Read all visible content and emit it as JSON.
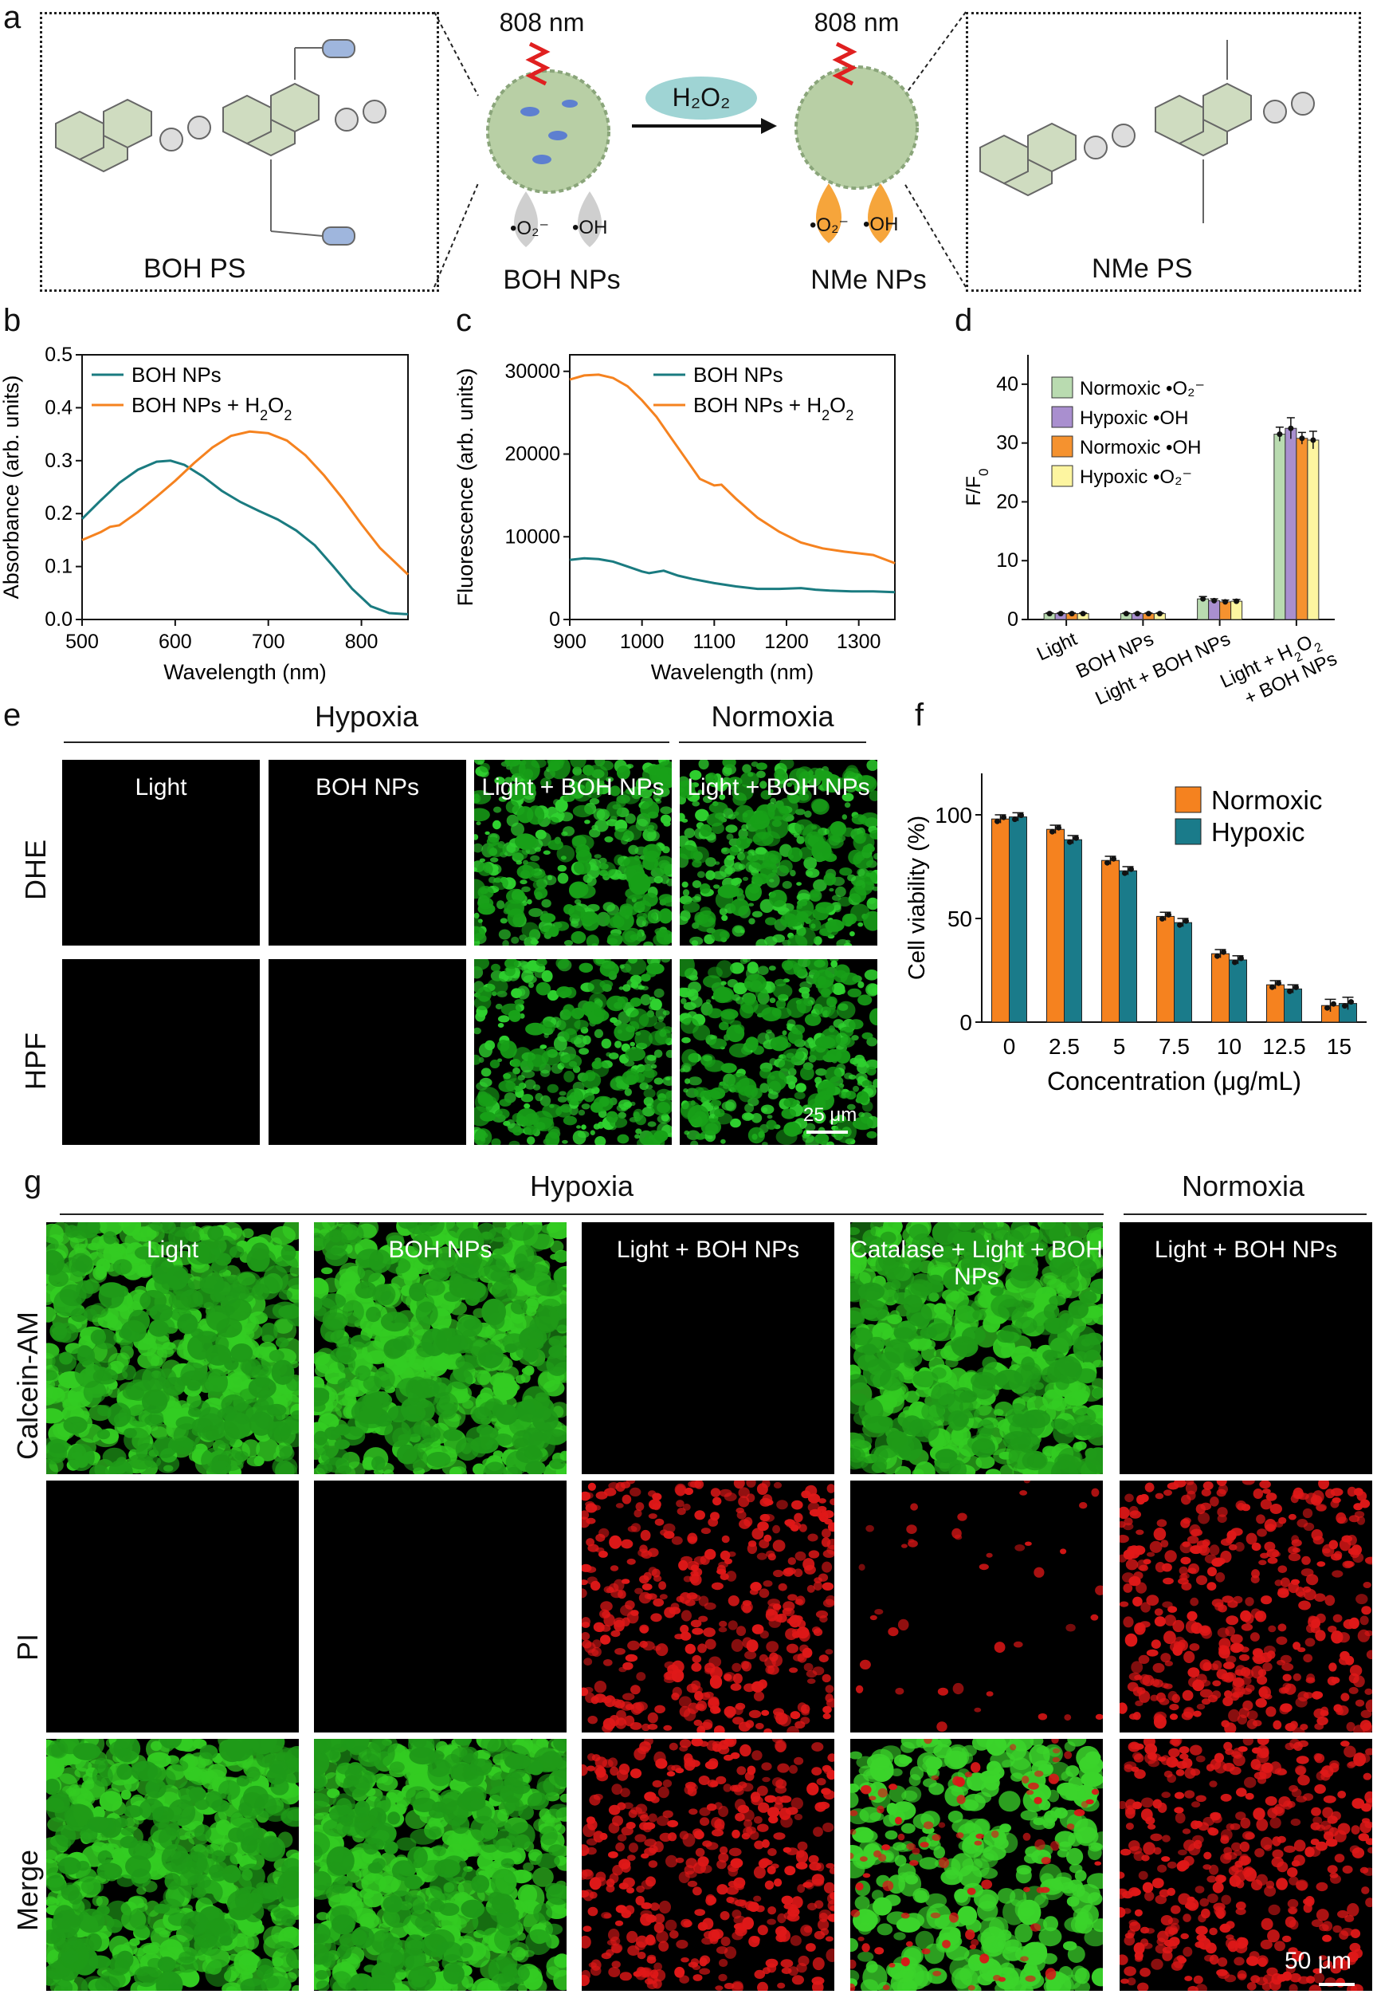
{
  "panel_labels": {
    "a": "a",
    "b": "b",
    "c": "c",
    "d": "d",
    "e": "e",
    "f": "f",
    "g": "g"
  },
  "panel_a": {
    "left_ps_label": "BOH PS",
    "right_ps_label": "NMe PS",
    "left_np_label": "BOH NPs",
    "right_np_label": "NMe NPs",
    "left_laser": "808 nm",
    "right_laser": "808 nm",
    "reagent": "H₂O₂",
    "ros_superoxide": "•O₂⁻",
    "ros_hydroxyl": "•OH"
  },
  "chart_data": [
    {
      "id": "b",
      "type": "line",
      "xlabel": "Wavelength (nm)",
      "ylabel": "Absorbance (arb. units)",
      "xlim": [
        500,
        850
      ],
      "ylim": [
        0,
        0.5
      ],
      "xticks": [
        500,
        600,
        700,
        800
      ],
      "yticks": [
        0.0,
        0.1,
        0.2,
        0.3,
        0.4,
        0.5
      ],
      "xtick_labels": [
        "500",
        "600",
        "700",
        "800"
      ],
      "ytick_labels": [
        "0.0",
        "0.1",
        "0.2",
        "0.3",
        "0.4",
        "0.5"
      ],
      "legend": "top-left",
      "series": [
        {
          "name": "BOH NPs",
          "color": "#1a7b80",
          "x": [
            500,
            520,
            540,
            560,
            580,
            595,
            610,
            630,
            650,
            670,
            690,
            710,
            730,
            750,
            770,
            790,
            810,
            830,
            850
          ],
          "y": [
            0.19,
            0.225,
            0.258,
            0.283,
            0.298,
            0.3,
            0.292,
            0.27,
            0.243,
            0.222,
            0.205,
            0.189,
            0.168,
            0.14,
            0.1,
            0.058,
            0.025,
            0.012,
            0.01
          ]
        },
        {
          "name": "BOH NPs + H2O2",
          "color": "#f5821f",
          "x": [
            500,
            520,
            530,
            540,
            560,
            580,
            600,
            620,
            640,
            660,
            680,
            700,
            720,
            740,
            760,
            780,
            800,
            820,
            850
          ],
          "y": [
            0.15,
            0.165,
            0.175,
            0.178,
            0.203,
            0.232,
            0.262,
            0.295,
            0.325,
            0.347,
            0.355,
            0.352,
            0.338,
            0.31,
            0.272,
            0.228,
            0.18,
            0.135,
            0.085
          ]
        }
      ]
    },
    {
      "id": "c",
      "type": "line",
      "xlabel": "Wavelength (nm)",
      "ylabel": "Fluorescence (arb. units)",
      "xlim": [
        900,
        1350
      ],
      "ylim": [
        0,
        32000
      ],
      "xticks": [
        900,
        1000,
        1100,
        1200,
        1300
      ],
      "yticks": [
        0,
        10000,
        20000,
        30000
      ],
      "xtick_labels": [
        "900",
        "1000",
        "1100",
        "1200",
        "1300"
      ],
      "ytick_labels": [
        "0",
        "10000",
        "20000",
        "30000"
      ],
      "legend": "top-right",
      "series": [
        {
          "name": "BOH NPs",
          "color": "#1a7b80",
          "x": [
            900,
            920,
            940,
            960,
            980,
            1000,
            1010,
            1030,
            1050,
            1070,
            1100,
            1130,
            1160,
            1190,
            1220,
            1240,
            1260,
            1290,
            1320,
            1350
          ],
          "y": [
            7200,
            7400,
            7300,
            7000,
            6400,
            5800,
            5600,
            5900,
            5300,
            4900,
            4400,
            4000,
            3700,
            3700,
            3800,
            3600,
            3500,
            3400,
            3400,
            3300
          ]
        },
        {
          "name": "BOH NPs + H2O2",
          "color": "#f5821f",
          "x": [
            900,
            920,
            940,
            960,
            980,
            1000,
            1020,
            1040,
            1060,
            1080,
            1100,
            1110,
            1130,
            1160,
            1190,
            1220,
            1250,
            1280,
            1300,
            1320,
            1350
          ],
          "y": [
            29000,
            29500,
            29600,
            29200,
            28200,
            26500,
            24500,
            22000,
            19500,
            17000,
            16200,
            16300,
            14600,
            12300,
            10600,
            9300,
            8600,
            8200,
            8000,
            7800,
            6800
          ]
        }
      ]
    },
    {
      "id": "d",
      "type": "bar",
      "ylabel": "F/F0",
      "ylim": [
        0,
        45
      ],
      "yticks": [
        0,
        10,
        20,
        30,
        40
      ],
      "ytick_labels": [
        "0",
        "10",
        "20",
        "30",
        "40"
      ],
      "categories": [
        "Light",
        "BOH NPs",
        "Light + BOH NPs",
        "Light + H2O2 + BOH NPs"
      ],
      "category_display": [
        "Light",
        "BOH NPs",
        "Light + BOH NPs",
        "Light + H₂O₂",
        "+ BOH NPs"
      ],
      "legend": "top-left",
      "series": [
        {
          "name": "Normoxic •O2-",
          "label": "Normoxic •O₂⁻",
          "color": "#b9dbb0",
          "values": [
            1.0,
            1.0,
            3.5,
            31.5
          ],
          "err": [
            0.1,
            0.1,
            0.4,
            1.2
          ]
        },
        {
          "name": "Hypoxic •OH",
          "label": "Hypoxic •OH",
          "color": "#a98fcf",
          "values": [
            1.0,
            1.0,
            3.2,
            32.5
          ],
          "err": [
            0.1,
            0.1,
            0.3,
            1.8
          ]
        },
        {
          "name": "Normoxic •OH",
          "label": "Normoxic •OH",
          "color": "#f5922f",
          "values": [
            1.0,
            1.0,
            3.0,
            30.8
          ],
          "err": [
            0.1,
            0.1,
            0.3,
            1.0
          ]
        },
        {
          "name": "Hypoxic •O2-",
          "label": "Hypoxic •O₂⁻",
          "color": "#fdf5a0",
          "values": [
            1.0,
            1.0,
            3.1,
            30.5
          ],
          "err": [
            0.1,
            0.1,
            0.3,
            1.5
          ]
        }
      ]
    },
    {
      "id": "f",
      "type": "bar",
      "xlabel": "Concentration (μg/mL)",
      "ylabel": "Cell viability (%)",
      "ylim": [
        0,
        120
      ],
      "yticks": [
        0,
        50,
        100
      ],
      "ytick_labels": [
        "0",
        "50",
        "100"
      ],
      "categories": [
        "0",
        "2.5",
        "5",
        "7.5",
        "10",
        "12.5",
        "15"
      ],
      "legend": "top-right",
      "series": [
        {
          "name": "Normoxic",
          "color": "#f5821f",
          "values": [
            98,
            93,
            78,
            51,
            33,
            18,
            8
          ],
          "err": [
            2,
            2,
            2,
            2,
            2,
            2,
            3
          ]
        },
        {
          "name": "Hypoxic",
          "color": "#1a7b8a",
          "values": [
            99,
            88,
            73,
            48,
            30,
            16,
            9
          ],
          "err": [
            2,
            2,
            2,
            2,
            2,
            2,
            3
          ]
        }
      ]
    }
  ],
  "panel_e": {
    "group_hypoxia": "Hypoxia",
    "group_normoxia": "Normoxia",
    "columns": [
      "Light",
      "BOH NPs",
      "Light + BOH NPs",
      "Light + BOH NPs"
    ],
    "rows": [
      "DHE",
      "HPF"
    ],
    "scale_bar": "25 μm"
  },
  "panel_g": {
    "group_hypoxia": "Hypoxia",
    "group_normoxia": "Normoxia",
    "columns": [
      "Light",
      "BOH NPs",
      "Light + BOH NPs",
      "Catalase + Light + BOH NPs",
      "Light + BOH NPs"
    ],
    "rows": [
      "Calcein-AM",
      "PI",
      "Merge"
    ],
    "scale_bar": "50 μm"
  }
}
